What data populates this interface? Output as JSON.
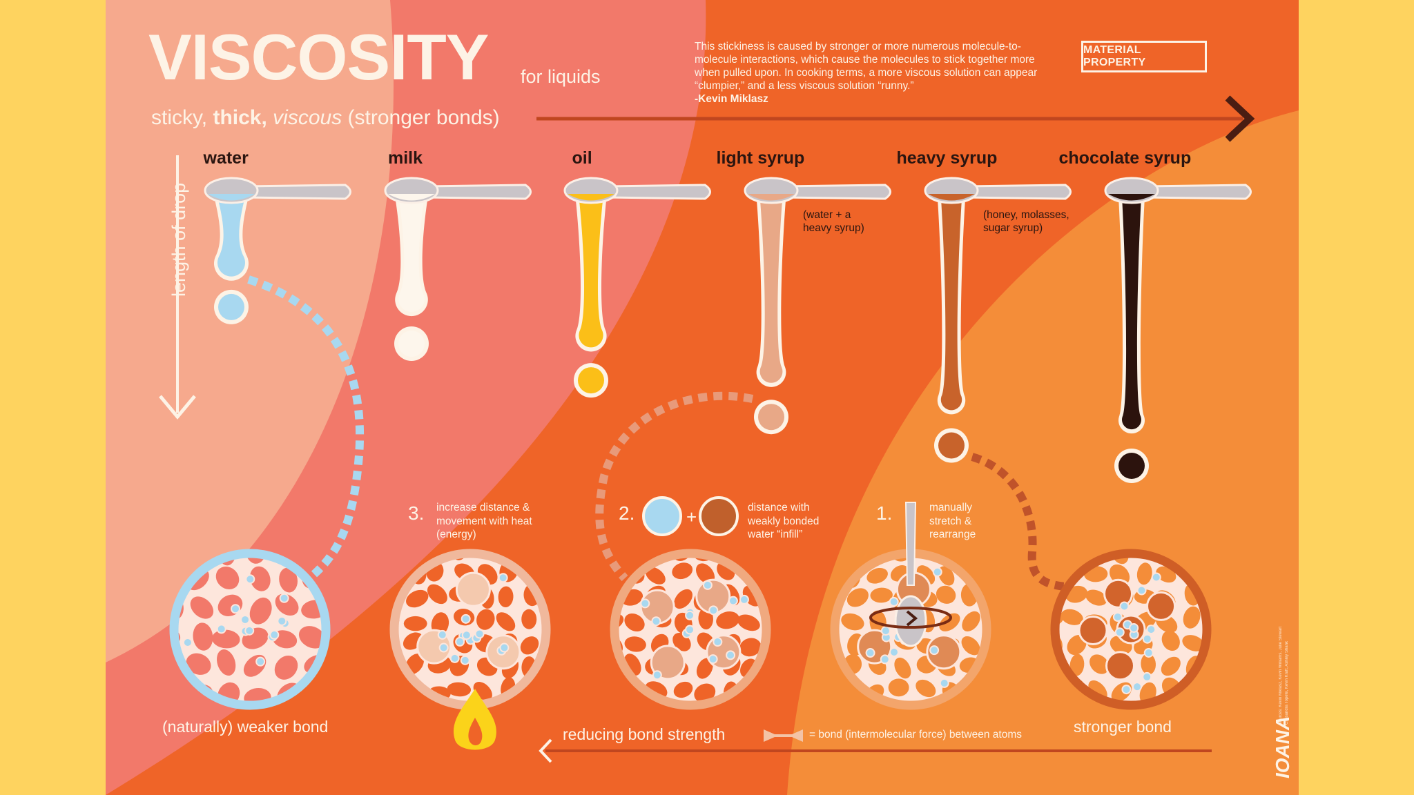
{
  "header": {
    "title": "VISCOSITY",
    "title_suffix": "for liquids",
    "tagline_word_1": "sticky,",
    "tagline_word_2": "thick,",
    "tagline_word_3": "viscous",
    "tagline_rest": "(stronger bonds)",
    "badge": "MATERIAL PROPERTY"
  },
  "quote": {
    "text": "This stickiness is caused by stronger or more numerous molecule-to-molecule interactions, which cause the molecules to stick together more when pulled upon. In cooking terms, a more viscous solution can appear “clumpier,” and a less viscous solution “runny.”",
    "author": "-Kevin Miklasz"
  },
  "axis": {
    "length_label": "length of drop"
  },
  "liquids": [
    {
      "name": "water",
      "note": "",
      "color": "#a8d8f0",
      "drop_length": 0.22
    },
    {
      "name": "milk",
      "note": "",
      "color": "#fdf6ec",
      "drop_length": 0.4
    },
    {
      "name": "oil",
      "note": "",
      "color": "#fbbf18",
      "drop_length": 0.58
    },
    {
      "name": "light syrup",
      "note": "(water + a heavy syrup)",
      "color": "#e8a887",
      "drop_length": 0.76
    },
    {
      "name": "heavy syrup",
      "note": "(honey, molasses, sugar syrup)",
      "color": "#c8632b",
      "drop_length": 0.9
    },
    {
      "name": "chocolate syrup",
      "note": "",
      "color": "#2c130d",
      "drop_length": 1.0
    }
  ],
  "steps": [
    {
      "number": "3.",
      "text": "increase distance & movement with heat (energy)"
    },
    {
      "number": "2.",
      "text": "distance with weakly bonded water “infill”",
      "operator": "+"
    },
    {
      "number": "1.",
      "text": "manually stretch & rearrange"
    }
  ],
  "captions": {
    "weaker": "(naturally) weaker bond",
    "stronger": "stronger bond",
    "reducing": "reducing bond strength",
    "legend": "= bond (intermolecular force) between atoms"
  },
  "signature": "IOANA",
  "credits": [
    "Sources: Kevin Miklasz, Kevin Williams, Julie Stewart",
    "Cassandra Topete, Kevin Kraft, Ashley Shank"
  ],
  "colors": {
    "background": "#fed35f",
    "zone_light": "#f6a98d",
    "zone_salmon": "#f2796a",
    "zone_orange": "#ef6428",
    "zone_amber": "#f48d39",
    "text_light": "#fdf3e6",
    "text_dark": "#2a1510",
    "spoon": "#c9c4c8",
    "arrow_dark": "#4a1d12"
  }
}
